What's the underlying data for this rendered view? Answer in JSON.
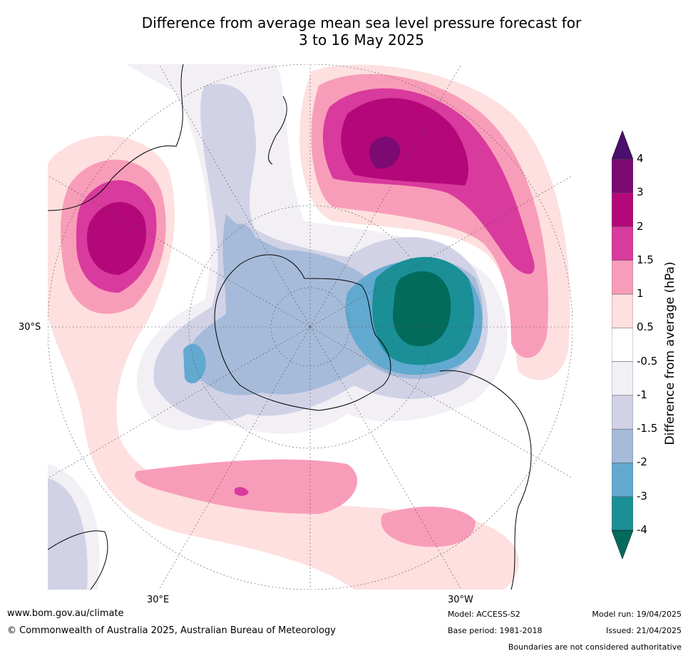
{
  "title": {
    "line1": "Difference from average mean sea level pressure forecast for",
    "line2": "3 to 16 May 2025"
  },
  "map": {
    "projection": "south-polar stereographic",
    "lat_label": "30°S",
    "lon_label_east": "30°E",
    "lon_label_west": "30°W"
  },
  "colorbar": {
    "title": "Difference from average (hPa)",
    "tick_labels": [
      "4",
      "3",
      "2",
      "1.5",
      "1",
      "0.5",
      "-0.5",
      "-1",
      "-1.5",
      "-2",
      "-3",
      "-4"
    ],
    "colors": [
      "#4b0f6e",
      "#7d0a72",
      "#b4087a",
      "#d93a9d",
      "#f89db9",
      "#fde0df",
      "#ffffff",
      "#f2eff5",
      "#d1d2e6",
      "#a6bbd9",
      "#62a9d0",
      "#1a8f96",
      "#026b5c"
    ]
  },
  "footer": {
    "website": "www.bom.gov.au/climate",
    "copyright": "© Commonwealth of Australia 2025, Australian Bureau of Meteorology",
    "model": "Model: ACCESS-S2",
    "base_period": "Base period: 1981-2018",
    "model_run": "Model run: 19/04/2025",
    "issued": "Issued: 21/04/2025",
    "disclaimer": "Boundaries are not considered authoritative"
  }
}
